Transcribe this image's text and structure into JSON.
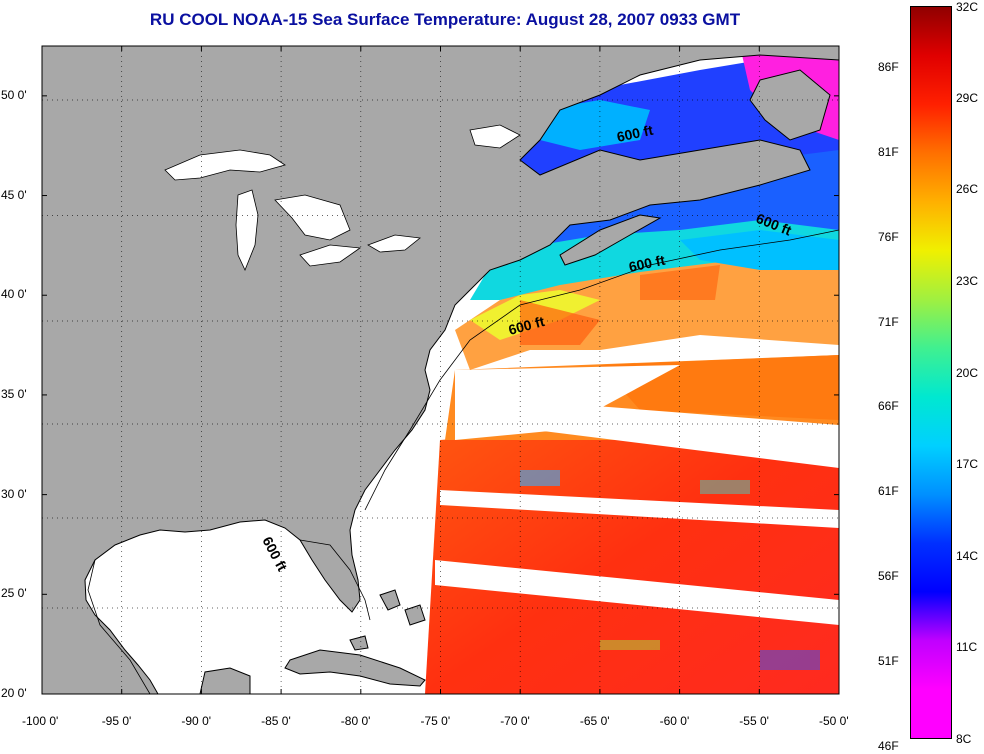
{
  "title": "RU COOL  NOAA-15  Sea Surface Temperature:  August 28, 2007 0933 GMT",
  "colors": {
    "title": "#0a10a0",
    "land": "#a8a8a8",
    "cloud": "#ffffff",
    "frame": "#000000"
  },
  "map": {
    "lon_range": [
      -100,
      -50
    ],
    "lat_range": [
      20,
      52.5
    ],
    "lon_ticks": [
      "-100 0'",
      "-95 0'",
      "-90 0'",
      "-85 0'",
      "-80 0'",
      "-75 0'",
      "-70 0'",
      "-65 0'",
      "-60 0'",
      "-55 0'",
      "-50 0'"
    ],
    "lat_ticks": [
      "50 0'",
      "45 0'",
      "40 0'",
      "35 0'",
      "30 0'",
      "25 0'",
      "20 0'"
    ],
    "lon_tick_values": [
      -100,
      -95,
      -90,
      -85,
      -80,
      -75,
      -70,
      -65,
      -60,
      -55,
      -50
    ],
    "lat_tick_values": [
      50,
      45,
      40,
      35,
      30,
      25,
      20
    ],
    "grid": "dotted",
    "isobath_labels": [
      "600 ft",
      "600 ft",
      "600 ft",
      "600 ft",
      "600 ft"
    ]
  },
  "colorbar": {
    "celsius_labels": [
      "32C",
      "29C",
      "26C",
      "23C",
      "20C",
      "17C",
      "14C",
      "11C",
      "8C"
    ],
    "celsius_values": [
      32,
      29,
      26,
      23,
      20,
      17,
      14,
      11,
      8
    ],
    "fahrenheit_labels": [
      "86F",
      "81F",
      "76F",
      "71F",
      "66F",
      "61F",
      "56F",
      "51F",
      "46F"
    ],
    "fahrenheit_values": [
      86,
      81,
      76,
      71,
      66,
      61,
      56,
      51,
      46
    ],
    "range_c": [
      8,
      32
    ],
    "colormap_stops": [
      "#ff00ff",
      "#ff00ff",
      "#c000ff",
      "#0000ff",
      "#0030ff",
      "#0090ff",
      "#00d0ff",
      "#00e8d0",
      "#40f090",
      "#a0f040",
      "#f0f000",
      "#ffb000",
      "#ff7000",
      "#ff2000",
      "#e00000",
      "#900000"
    ]
  }
}
